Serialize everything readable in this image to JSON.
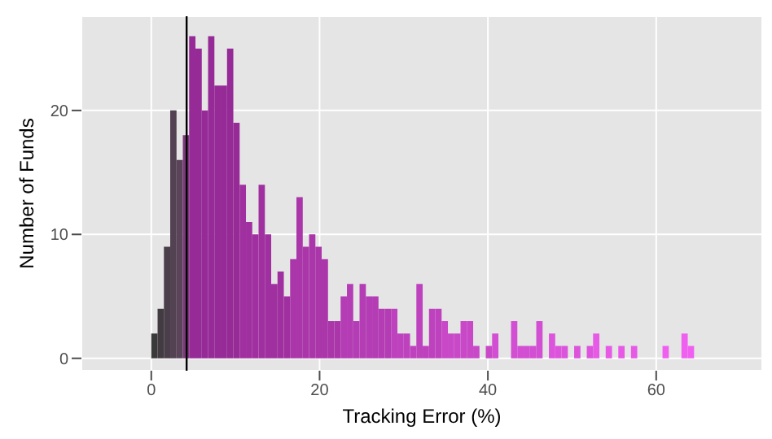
{
  "chart_data": {
    "type": "histogram",
    "xlabel": "Tracking Error (%)",
    "ylabel": "Number of Funds",
    "bins": [
      0,
      0.75,
      1.5,
      2.25,
      3,
      3.75,
      4.5,
      5.25,
      6,
      6.75,
      7.5,
      8.25,
      9,
      9.75,
      10.5,
      11.25,
      12,
      12.75,
      13.5,
      14.25,
      15,
      15.75,
      16.5,
      17.25,
      18,
      18.75,
      19.5,
      20.25,
      21,
      21.75,
      22.5,
      23.25,
      24,
      24.75,
      25.5,
      26.25,
      27,
      27.75,
      28.5,
      29.25,
      30,
      30.75,
      31.5,
      32.25,
      33,
      33.75,
      34.5,
      35.25,
      36,
      36.75,
      37.5,
      38.25,
      39,
      39.75,
      40.5,
      41.25,
      42,
      42.75,
      43.5,
      44.25,
      45,
      45.75,
      46.5,
      47.25,
      48,
      48.75,
      49.5,
      50.25,
      51,
      51.75,
      52.5,
      53.25,
      54,
      54.75,
      55.5,
      56.25,
      57,
      57.75,
      58.5,
      59.25,
      60,
      60.75,
      61.5,
      62.25,
      63,
      63.75,
      64.5
    ],
    "values": [
      2,
      4,
      9,
      20,
      16,
      18,
      26,
      25,
      20,
      26,
      22,
      22,
      25,
      19,
      14,
      11,
      10,
      14,
      10,
      6,
      7,
      5,
      8,
      13,
      9,
      10,
      9,
      8,
      3,
      3,
      5,
      6,
      3,
      6,
      5,
      5,
      4,
      4,
      4,
      2,
      2,
      1,
      6,
      1,
      4,
      4,
      3,
      2,
      2,
      3,
      3,
      1,
      0,
      1,
      2,
      0,
      0,
      3,
      1,
      1,
      1,
      3,
      0,
      2,
      1,
      1,
      0,
      1,
      0,
      1,
      2,
      0,
      1,
      0,
      1,
      0,
      1,
      0,
      0,
      0,
      0,
      1,
      0,
      0,
      2,
      1
    ],
    "colors": [
      "#3a3a3a",
      "#423c42",
      "#4a3e4a",
      "#524252",
      "#5a445a",
      "#7a3a7a",
      "#962a96",
      "#962a96",
      "#962a96",
      "#962a96",
      "#962a96",
      "#962a96",
      "#962a96",
      "#962a96",
      "#a030a0",
      "#a030a0",
      "#a030a0",
      "#a030a0",
      "#a030a0",
      "#a030a0",
      "#a030a0",
      "#a030a0",
      "#aa36aa",
      "#aa36aa",
      "#aa36aa",
      "#aa36aa",
      "#aa36aa",
      "#aa36aa",
      "#aa36aa",
      "#aa36aa",
      "#b43cb4",
      "#b43cb4",
      "#b43cb4",
      "#b43cb4",
      "#b43cb4",
      "#b43cb4",
      "#b43cb4",
      "#b43cb4",
      "#be42be",
      "#be42be",
      "#be42be",
      "#be42be",
      "#be42be",
      "#be42be",
      "#be42be",
      "#be42be",
      "#c848c8",
      "#c848c8",
      "#c848c8",
      "#c848c8",
      "#c848c8",
      "#c848c8",
      "#c848c8",
      "#c848c8",
      "#d24ed2",
      "#d24ed2",
      "#d24ed2",
      "#d24ed2",
      "#d24ed2",
      "#d24ed2",
      "#d24ed2",
      "#d24ed2",
      "#dc54dc",
      "#dc54dc",
      "#dc54dc",
      "#dc54dc",
      "#dc54dc",
      "#dc54dc",
      "#dc54dc",
      "#dc54dc",
      "#e65ae6",
      "#e65ae6",
      "#e65ae6",
      "#e65ae6",
      "#e65ae6",
      "#e65ae6",
      "#e65ae6",
      "#e65ae6",
      "#f060f0",
      "#f060f0",
      "#f060f0",
      "#f060f0",
      "#f060f0",
      "#f060f0",
      "#f060f0",
      "#f060f0"
    ],
    "xlim": [
      -8.3,
      72.6
    ],
    "xticks": [
      0,
      20,
      40,
      60
    ],
    "ylim": [
      -1,
      27.6
    ],
    "yticks": [
      0,
      10,
      20
    ],
    "grid": true,
    "ref_lines": [
      {
        "axis": "x",
        "value": 4.2,
        "color": "#000000"
      }
    ]
  }
}
